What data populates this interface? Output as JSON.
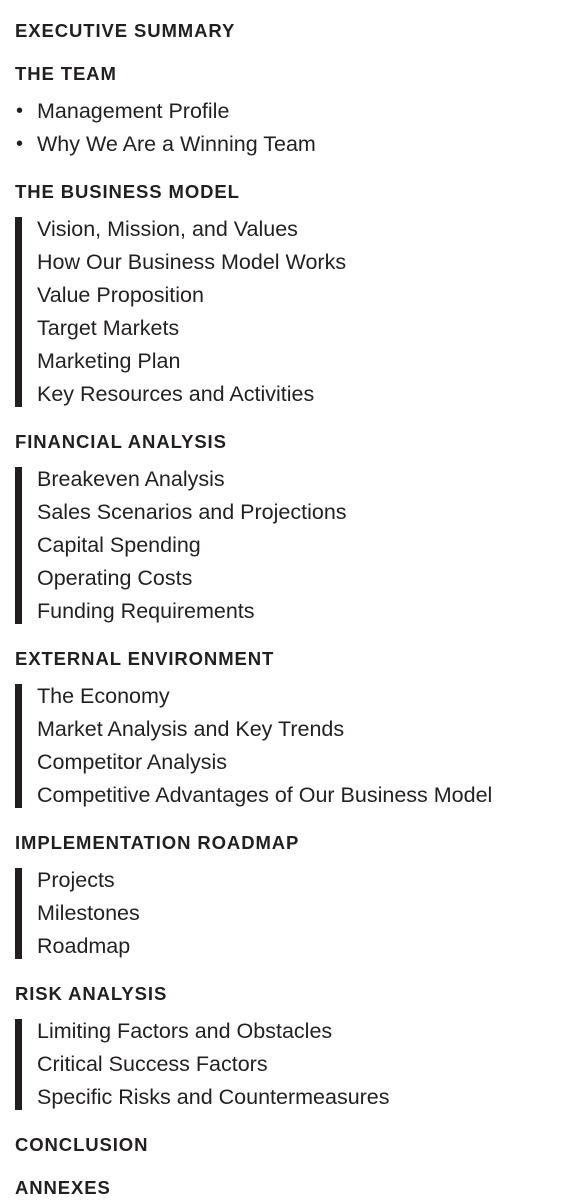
{
  "sections": [
    {
      "heading": "EXECUTIVE SUMMARY",
      "items": []
    },
    {
      "heading": "THE TEAM",
      "style": "bullets",
      "items": [
        "Management Profile",
        "Why We Are a Winning Team"
      ]
    },
    {
      "heading": "THE BUSINESS MODEL",
      "style": "bar",
      "items": [
        "Vision, Mission, and Values",
        "How Our Business Model Works",
        "Value Proposition",
        "Target Markets",
        "Marketing Plan",
        "Key Resources and Activities"
      ]
    },
    {
      "heading": "FINANCIAL ANALYSIS",
      "style": "bar",
      "items": [
        "Breakeven Analysis",
        "Sales Scenarios and Projections",
        "Capital Spending",
        "Operating Costs",
        "Funding Requirements"
      ]
    },
    {
      "heading": "EXTERNAL ENVIRONMENT",
      "style": "bar",
      "items": [
        "The Economy",
        "Market Analysis and Key Trends",
        "Competitor Analysis",
        "Competitive Advantages of Our Business Model"
      ]
    },
    {
      "heading": "IMPLEMENTATION ROADMAP",
      "style": "bar",
      "items": [
        "Projects",
        "Milestones",
        "Roadmap"
      ]
    },
    {
      "heading": "RISK ANALYSIS",
      "style": "bar",
      "items": [
        "Limiting Factors and Obstacles",
        "Critical Success Factors",
        "Specific Risks and Countermeasures"
      ]
    },
    {
      "heading": "CONCLUSION",
      "items": []
    },
    {
      "heading": "ANNEXES",
      "items": []
    }
  ],
  "bullet_glyph": "•",
  "colors": {
    "text": "#231f20",
    "bar": "#231f20",
    "background": "#ffffff"
  }
}
